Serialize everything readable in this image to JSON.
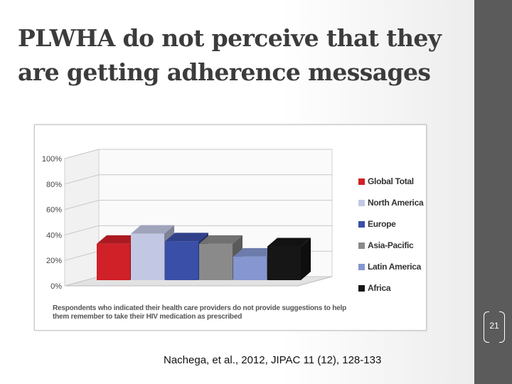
{
  "slide": {
    "title": "PLWHA do not perceive that they are getting adherence messages",
    "citation": "Nachega, et al., 2012, JIPAC 11 (12), 128-133",
    "page_number": "21"
  },
  "colors": {
    "Global Total": "#d02028",
    "North America": "#c2c8e4",
    "Europe": "#3a4fa8",
    "Asia-Pacific": "#8a8a8a",
    "Latin America": "#8596d0",
    "Africa": "#161616",
    "sidebar": "#5b5b5b"
  },
  "chart_data": {
    "type": "bar",
    "categories": [
      "Global Total",
      "North America",
      "Europe",
      "Asia-Pacific",
      "Latin America",
      "Africa"
    ],
    "values": [
      33,
      41,
      35,
      33,
      23,
      31
    ],
    "unit": "%",
    "ylim": [
      0,
      100
    ],
    "yticks": [
      "100%",
      "80%",
      "60%",
      "40%",
      "20%",
      "0%"
    ],
    "ytick_values": [
      100,
      80,
      60,
      40,
      20,
      0
    ],
    "legend": [
      "Global Total",
      "North America",
      "Europe",
      "Asia-Pacific",
      "Latin America",
      "Africa"
    ],
    "legend_position": "right",
    "grid": true,
    "style": "3d",
    "caption": "Respondents who indicated their health care providers do not provide suggestions to help them remember to take their HIV medication as prescribed"
  }
}
